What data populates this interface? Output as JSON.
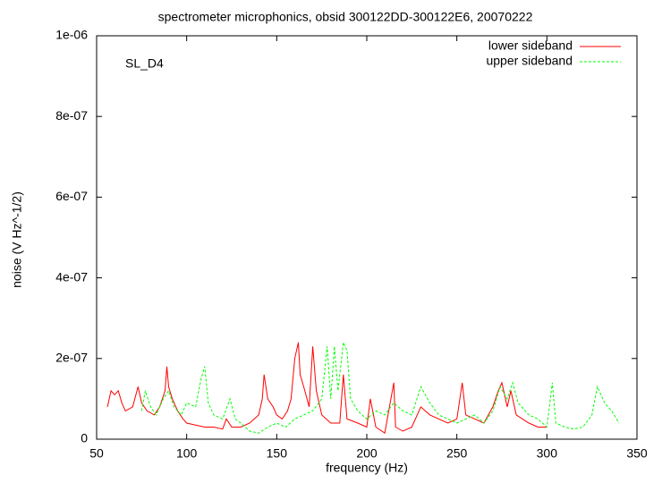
{
  "chart_data": {
    "type": "line",
    "title": "spectrometer microphonics, obsid 300122DD-300122E6, 20070222",
    "annotation": "SL_D4",
    "xlabel": "frequency (Hz)",
    "ylabel": "noise (V Hz^-1/2)",
    "xlim": [
      50,
      350
    ],
    "xticks": [
      50,
      100,
      150,
      200,
      250,
      300,
      350
    ],
    "ylim": [
      0,
      1e-06
    ],
    "yticks": [
      0,
      {
        "value": 2e-07,
        "label": "2e-07"
      },
      {
        "value": 4e-07,
        "label": "4e-07"
      },
      {
        "value": 6e-07,
        "label": "6e-07"
      },
      {
        "value": 8e-07,
        "label": "8e-07"
      },
      {
        "value": 1e-06,
        "label": "1e-06"
      }
    ],
    "legend": "upper right",
    "series": [
      {
        "name": "lower sideband",
        "color": "#ff0000",
        "dash": false,
        "x": [
          56,
          58,
          60,
          62,
          64,
          66,
          70,
          73,
          75,
          78,
          82,
          85,
          88,
          89,
          90,
          92,
          95,
          98,
          100,
          105,
          110,
          115,
          120,
          122,
          125,
          130,
          135,
          140,
          142,
          143,
          145,
          148,
          150,
          153,
          156,
          158,
          160,
          162,
          163,
          165,
          168,
          170,
          172,
          175,
          180,
          185,
          187,
          189,
          195,
          200,
          202,
          205,
          210,
          215,
          216,
          220,
          225,
          230,
          235,
          240,
          245,
          250,
          253,
          255,
          260,
          265,
          270,
          273,
          275,
          278,
          280,
          283,
          290,
          295,
          300
        ],
        "values": [
          8e-08,
          1.2e-07,
          1.1e-07,
          1.2e-07,
          9e-08,
          7e-08,
          8e-08,
          1.3e-07,
          9e-08,
          7e-08,
          6e-08,
          8e-08,
          1.2e-07,
          1.8e-07,
          1.3e-07,
          1e-07,
          7e-08,
          5e-08,
          4e-08,
          3.5e-08,
          3e-08,
          3e-08,
          2.5e-08,
          5e-08,
          3e-08,
          3e-08,
          4e-08,
          6e-08,
          1e-07,
          1.6e-07,
          1e-07,
          8e-08,
          6e-08,
          5e-08,
          7e-08,
          1e-07,
          2e-07,
          2.4e-07,
          1.6e-07,
          1.3e-07,
          8e-08,
          2.3e-07,
          1.2e-07,
          6e-08,
          4e-08,
          4e-08,
          1.6e-07,
          5e-08,
          4e-08,
          3e-08,
          1e-07,
          3e-08,
          1.5e-08,
          1.4e-07,
          3e-08,
          2e-08,
          3e-08,
          8e-08,
          6e-08,
          5e-08,
          4e-08,
          5e-08,
          1.4e-07,
          6e-08,
          5e-08,
          4e-08,
          8e-08,
          1.2e-07,
          1.4e-07,
          8e-08,
          1.2e-07,
          6e-08,
          4e-08,
          3e-08,
          3e-08
        ]
      },
      {
        "name": "upper sideband",
        "color": "#00ff00",
        "dash": true,
        "x": [
          75,
          77,
          80,
          83,
          87,
          90,
          93,
          97,
          100,
          105,
          108,
          110,
          112,
          115,
          120,
          124,
          127,
          130,
          135,
          140,
          145,
          150,
          155,
          160,
          165,
          170,
          175,
          178,
          180,
          182,
          184,
          187,
          189,
          191,
          195,
          200,
          205,
          210,
          215,
          220,
          225,
          230,
          235,
          240,
          245,
          250,
          255,
          260,
          265,
          270,
          274,
          278,
          281,
          284,
          290,
          295,
          300,
          303,
          305,
          310,
          315,
          320,
          325,
          328,
          332,
          336,
          340
        ],
        "values": [
          7e-08,
          1.2e-07,
          8e-08,
          6e-08,
          1e-07,
          1.2e-07,
          8e-08,
          6e-08,
          9e-08,
          8e-08,
          1.5e-07,
          1.8e-07,
          9e-08,
          6e-08,
          5e-08,
          1e-07,
          5e-08,
          4e-08,
          2e-08,
          1.5e-08,
          3e-08,
          4e-08,
          3e-08,
          5e-08,
          6e-08,
          7e-08,
          1e-07,
          2.3e-07,
          1e-07,
          2.3e-07,
          1.2e-07,
          2.4e-07,
          2.2e-07,
          1e-07,
          7e-08,
          5e-08,
          7e-08,
          6e-08,
          9e-08,
          7e-08,
          6e-08,
          1.3e-07,
          9e-08,
          6e-08,
          5e-08,
          4e-08,
          5e-08,
          6e-08,
          4e-08,
          7e-08,
          1.3e-07,
          1e-07,
          1.4e-07,
          9e-08,
          6e-08,
          5e-08,
          3e-08,
          1.4e-07,
          4e-08,
          3e-08,
          2.5e-08,
          3e-08,
          6e-08,
          1.3e-07,
          9e-08,
          7e-08,
          4e-08
        ]
      }
    ]
  }
}
